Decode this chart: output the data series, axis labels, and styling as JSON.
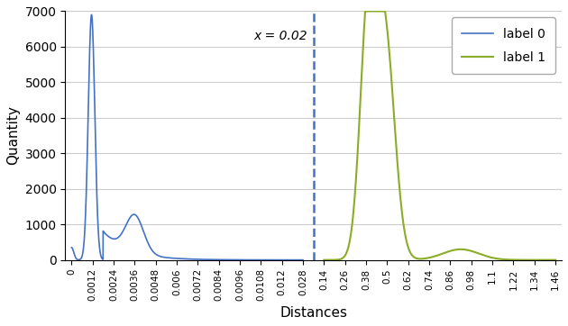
{
  "title": "",
  "xlabel": "Distances",
  "ylabel": "Quantity",
  "vline_label": "x = 0.02",
  "label0_color": "#4472C4",
  "label1_color": "#8AAD27",
  "background_color": "#FFFFFF",
  "grid_color": "#CCCCCC",
  "ylim": [
    0,
    7000
  ],
  "yticks": [
    0,
    1000,
    2000,
    3000,
    4000,
    5000,
    6000,
    7000
  ],
  "xtick_labels": [
    "0",
    "0.0012",
    "0.0024",
    "0.0036",
    "0.0048",
    "0.006",
    "0.0072",
    "0.0084",
    "0.0096",
    "0.0108",
    "0.012",
    "0.028",
    "0.14",
    "0.26",
    "0.38",
    "0.5",
    "0.62",
    "0.74",
    "0.86",
    "0.98",
    "1.1",
    "1.22",
    "1.34",
    "1.46"
  ],
  "vline_tick_index": 11.5,
  "legend_label0": "label 0",
  "legend_label1": "label 1",
  "num_ticks": 24
}
